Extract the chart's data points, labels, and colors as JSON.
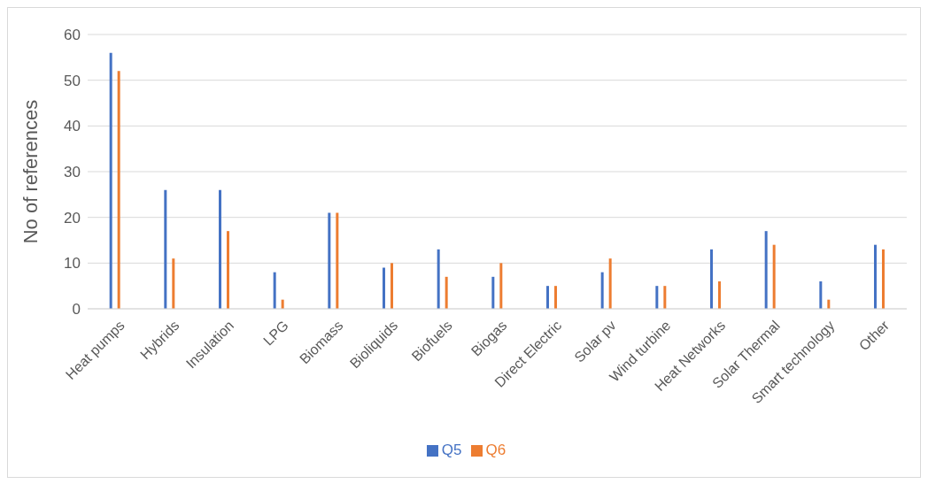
{
  "chart_data": {
    "type": "bar",
    "ylabel": "No of references",
    "categories": [
      "Heat pumps",
      "Hybrids",
      "Insulation",
      "LPG",
      "Biomass",
      "Bioliquids",
      "Biofuels",
      "Biogas",
      "Direct Electric",
      "Solar pv",
      "Wind turbine",
      "Heat Networks",
      "Solar Thermal",
      "Smart technology",
      "Other"
    ],
    "series": [
      {
        "name": "Q5",
        "color": "#4472c4",
        "values": [
          56,
          26,
          26,
          8,
          21,
          9,
          13,
          7,
          5,
          8,
          5,
          13,
          17,
          6,
          14
        ]
      },
      {
        "name": "Q6",
        "color": "#ed7d31",
        "values": [
          52,
          11,
          17,
          2,
          21,
          10,
          7,
          10,
          5,
          11,
          5,
          6,
          14,
          2,
          13
        ]
      }
    ],
    "ylim": [
      0,
      60
    ],
    "yticks": [
      0,
      10,
      20,
      30,
      40,
      50,
      60
    ],
    "grid": "y",
    "legend": "bottom"
  }
}
